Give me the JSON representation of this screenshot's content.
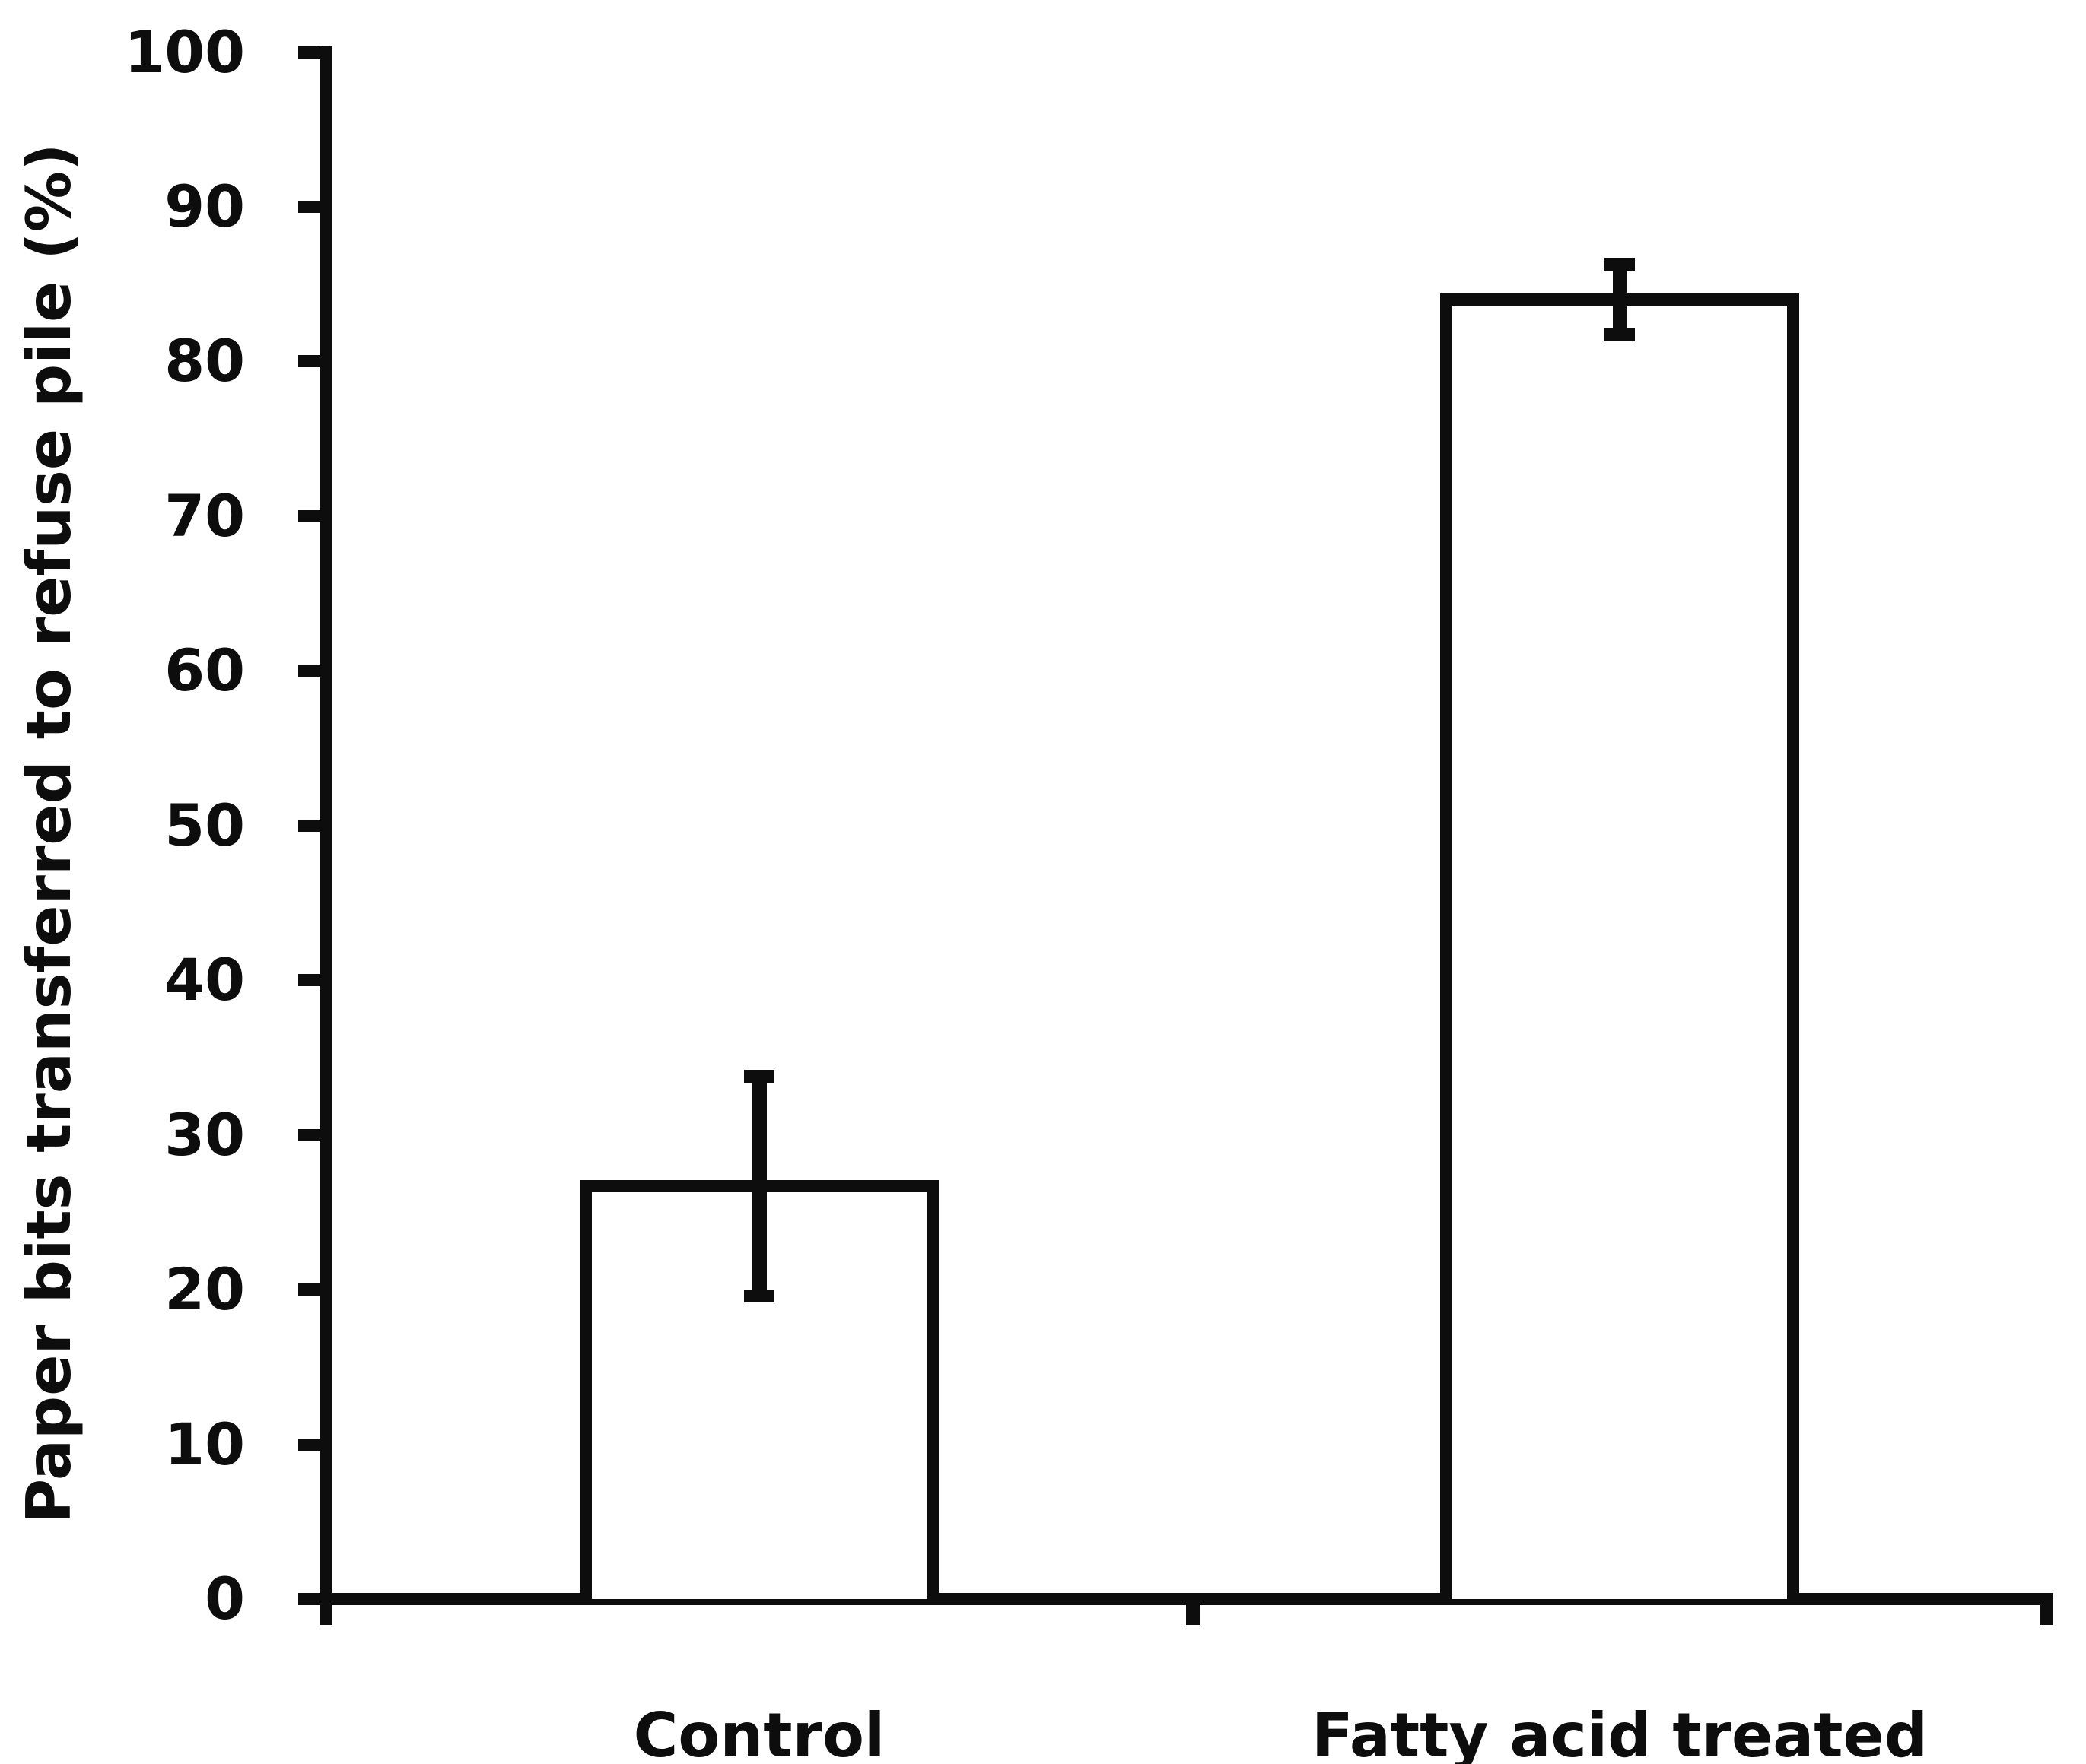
{
  "chart_data": {
    "type": "bar",
    "title": "",
    "categories": [
      "Control",
      "Fatty acid treated"
    ],
    "values": [
      26.7,
      84.0
    ],
    "error_bars": {
      "plus": [
        7.1,
        2.3
      ],
      "minus": [
        7.1,
        2.3
      ]
    },
    "series": [
      {
        "name": "Paper bits transferred",
        "values": [
          26.7,
          84.0
        ],
        "error_plus": [
          7.1,
          2.3
        ],
        "error_minus": [
          7.1,
          2.3
        ]
      }
    ],
    "xlabel": "",
    "ylabel": "Paper bits transferred to refuse pile (%)",
    "ylim": [
      0,
      100
    ],
    "yticks": [
      0,
      10,
      20,
      30,
      40,
      50,
      60,
      70,
      80,
      90,
      100
    ],
    "ytick_step": 10,
    "grid": false,
    "legend": false,
    "bar_fill": "#ffffff",
    "bar_border_color": "#0d0d0d",
    "axis_color": "#0d0d0d",
    "text_color": "#0d0d0d",
    "background": "#ffffff"
  }
}
